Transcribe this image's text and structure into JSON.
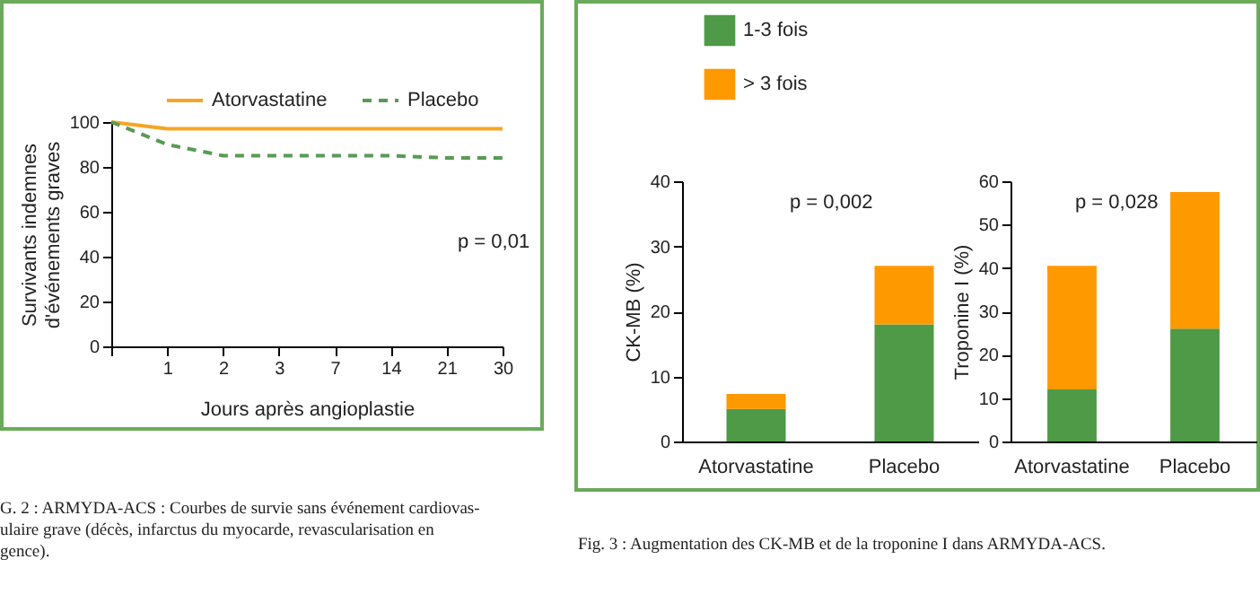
{
  "chart_data": [
    {
      "type": "line",
      "ylabel": "Survivants indemnes\nd'événements graves",
      "xlabel": "Jours après angioplastie",
      "categories": [
        null,
        "1",
        "2",
        "3",
        "7",
        "14",
        "21",
        "30"
      ],
      "ylim": [
        0,
        100
      ],
      "yticks": [
        0,
        20,
        40,
        60,
        80,
        100
      ],
      "legend": "top",
      "marker": "none",
      "series": [
        {
          "name": "Atorvastatine",
          "color": "#f5a623",
          "line_style": "solid",
          "values": [
            100,
            97,
            97,
            97,
            97,
            97,
            97,
            97
          ]
        },
        {
          "name": "Placebo",
          "color": "#5a9a55",
          "line_style": "dashed",
          "values": [
            100,
            90,
            85,
            85,
            85,
            85,
            84,
            84
          ]
        }
      ],
      "annotations": [
        "p = 0,01",
        "G. 2 : ARMYDA-ACS : Courbes de survie sans événement cardiovas-",
        "ulaire grave (décès, infarctus du myocarde, revascularisation en",
        "gence)."
      ]
    },
    {
      "type": "bar",
      "stacked": true,
      "ylabel": "CK-MB (%)",
      "categories": [
        "Atorvastatine",
        "Placebo"
      ],
      "ylim": [
        0,
        40
      ],
      "yticks": [
        0,
        10,
        20,
        30,
        40
      ],
      "legend": "top left",
      "series": [
        {
          "name": "1-3 fois",
          "color": "#4e9a47",
          "values": [
            5,
            18
          ]
        },
        {
          "name": "> 3 fois",
          "color": "#ff9900",
          "values": [
            2.3,
            9
          ]
        }
      ],
      "annotations": [
        "p = 0,002"
      ]
    },
    {
      "type": "bar",
      "stacked": true,
      "ylabel": "Troponine I (%)",
      "categories": [
        "Atorvastatine",
        "Placebo"
      ],
      "ylim": [
        0,
        60
      ],
      "yticks": [
        0,
        10,
        20,
        30,
        40,
        50,
        60
      ],
      "series": [
        {
          "color": "#4e9a47",
          "values": [
            12,
            26
          ]
        },
        {
          "color": "#ff9900",
          "values": [
            28.5,
            31.5
          ]
        }
      ],
      "annotations": [
        "p = 0,028",
        "Fig. 3 : Augmentation des CK-MB et de la troponine I dans ARMYDA-ACS."
      ]
    }
  ]
}
